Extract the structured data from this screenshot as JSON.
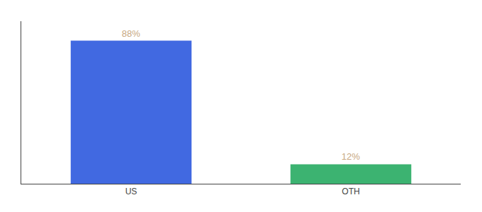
{
  "chart_data": {
    "type": "bar",
    "categories": [
      "US",
      "OTH"
    ],
    "values": [
      88,
      12
    ],
    "value_labels": [
      "88%",
      "12%"
    ],
    "colors": [
      "#4169E1",
      "#3CB371"
    ],
    "ylim": [
      0,
      100
    ],
    "yticks": [],
    "grid": false,
    "tick_labels": "x"
  }
}
